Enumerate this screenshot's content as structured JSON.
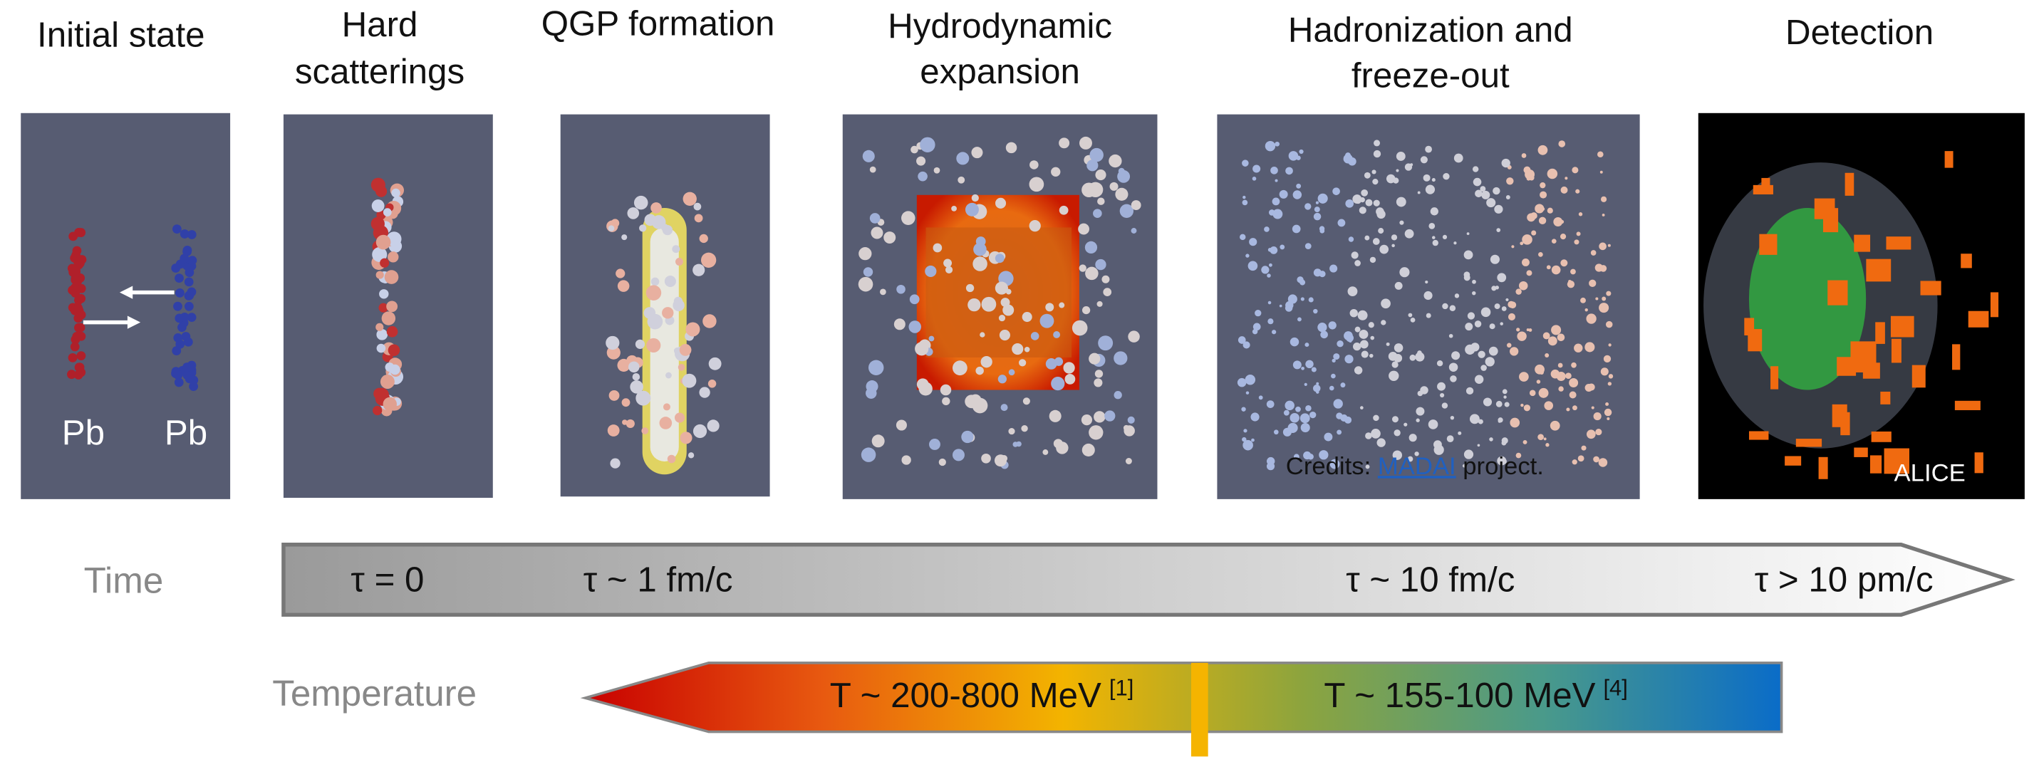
{
  "stages": [
    {
      "title_lines": [
        "Initial state"
      ],
      "labels": [
        "Pb",
        "Pb"
      ]
    },
    {
      "title_lines": [
        "Hard",
        "scatterings"
      ]
    },
    {
      "title_lines": [
        "QGP formation"
      ]
    },
    {
      "title_lines": [
        "Hydrodynamic",
        "expansion"
      ]
    },
    {
      "title_lines": [
        "Hadronization and",
        "freeze-out"
      ],
      "credits": {
        "before": "Credits:",
        "link": "MADAI",
        "after": "project."
      }
    },
    {
      "title_lines": [
        "Detection"
      ],
      "labels": [
        "ALICE"
      ]
    }
  ],
  "time": {
    "label": "Time",
    "marks": [
      "τ = 0",
      "τ ~ 1 fm/c",
      "τ ~ 10 fm/c",
      "τ > 10 pm/c"
    ]
  },
  "temperature": {
    "label": "Temperature",
    "ranges": [
      {
        "text": "T ~ 200-800 MeV",
        "ref": "[1]"
      },
      {
        "text": "T ~ 155-100 MeV",
        "ref": "[4]"
      }
    ]
  }
}
